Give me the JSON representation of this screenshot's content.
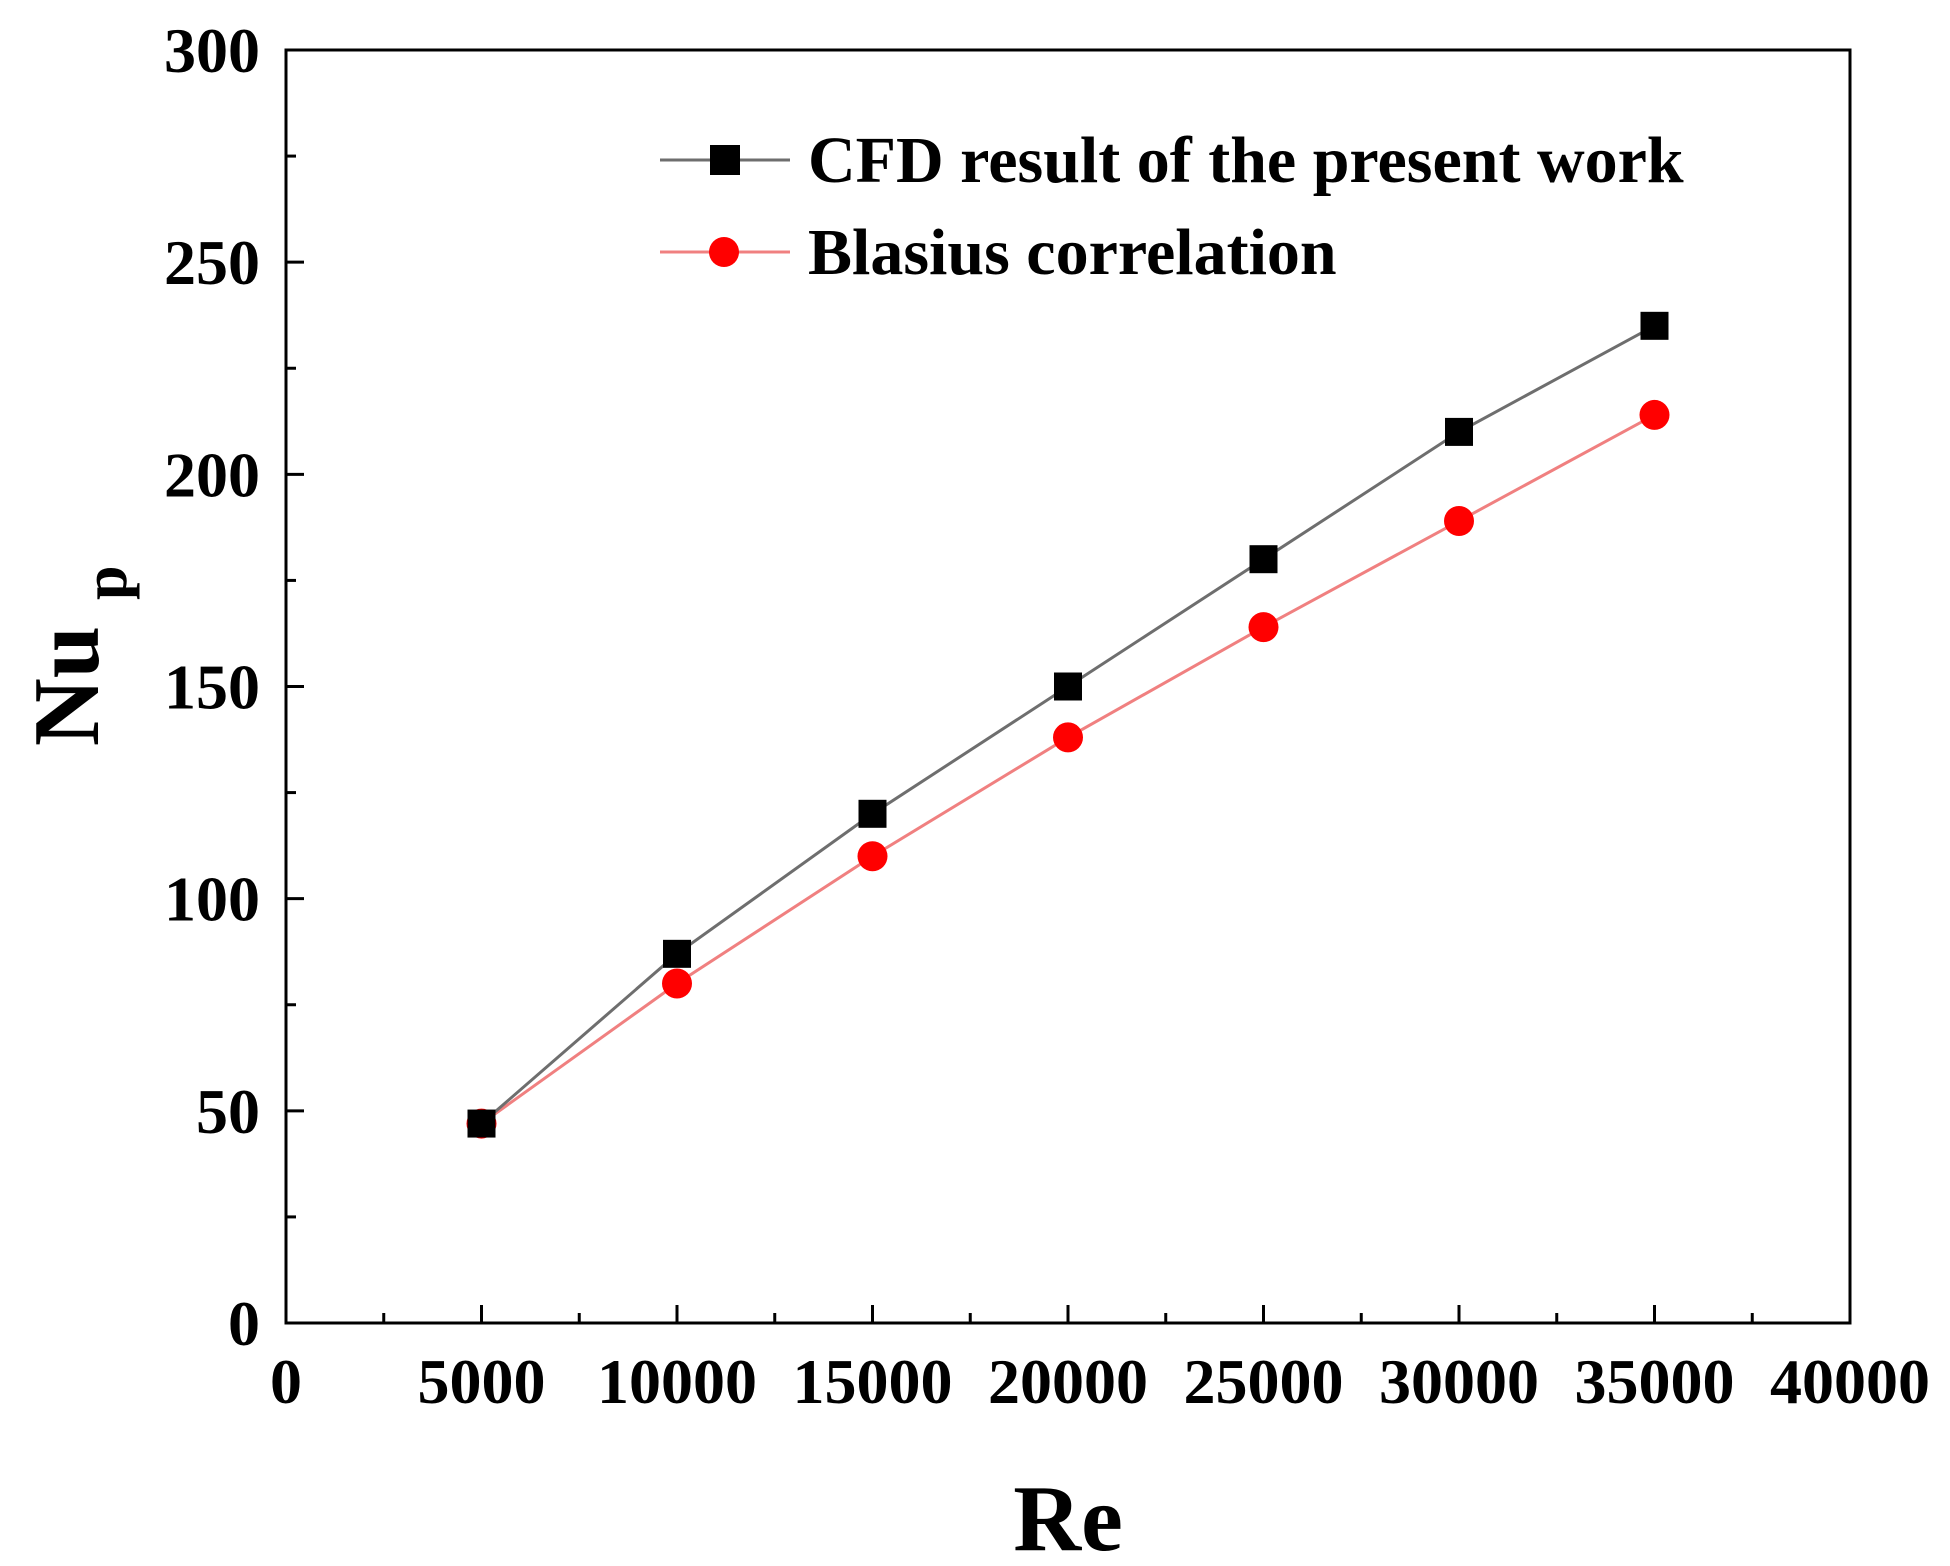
{
  "chart_data": {
    "type": "line",
    "title": "",
    "xlabel": "Re",
    "ylabel": "Nu",
    "ylabel_subscript": "p",
    "xlim": [
      0,
      40000
    ],
    "ylim": [
      0,
      300
    ],
    "x_major_ticks": [
      0,
      5000,
      10000,
      15000,
      20000,
      25000,
      30000,
      35000,
      40000
    ],
    "x_tick_labels": [
      "0",
      "5000",
      "10000",
      "15000",
      "20000",
      "25000",
      "30000",
      "35000",
      "40000"
    ],
    "y_major_ticks": [
      0,
      50,
      100,
      150,
      200,
      250,
      300
    ],
    "y_tick_labels": [
      "0",
      "50",
      "100",
      "150",
      "200",
      "250",
      "300"
    ],
    "grid": false,
    "legend_position": "top-right",
    "x": [
      5000,
      10000,
      15000,
      20000,
      25000,
      30000,
      35000
    ],
    "series": [
      {
        "name": "CFD result of the present work",
        "values": [
          47,
          87,
          120,
          150,
          180,
          210,
          235
        ],
        "color": "#000000",
        "line_color": "#6e6e6e",
        "marker": "square"
      },
      {
        "name": "Blasius correlation",
        "values": [
          47,
          80,
          110,
          138,
          164,
          189,
          214
        ],
        "color": "#ff0000",
        "line_color": "#f08080",
        "marker": "circle"
      }
    ]
  }
}
